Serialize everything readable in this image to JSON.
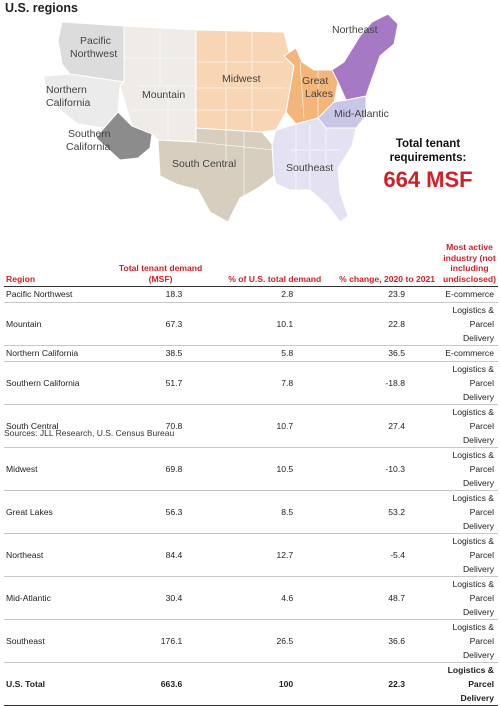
{
  "title": "U.S. regions",
  "colors": {
    "accent_red": "#d21f26",
    "pacific_northwest": "#dcdcdc",
    "mountain": "#efece8",
    "northern_california": "#ebebeb",
    "southern_california": "#8c8c8c",
    "south_central": "#d7cebf",
    "midwest": "#f7d5b5",
    "great_lakes": "#f4b57a",
    "northeast": "#a679c4",
    "mid_atlantic": "#c9c6e6",
    "southeast": "#e4e2f2"
  },
  "map_labels": {
    "pacific_northwest": "Pacific Northwest",
    "northern_california": "Northern California",
    "mountain": "Mountain",
    "southern_california": "Southern California",
    "south_central": "South Central",
    "midwest": "Midwest",
    "great_lakes": "Great Lakes",
    "northeast": "Northeast",
    "mid_atlantic": "Mid-Atlantic",
    "southeast": "Southeast"
  },
  "total": {
    "label": "Total tenant requirements:",
    "value": "664 MSF"
  },
  "table": {
    "headers": [
      "Region",
      "Total tenant demand (MSF)",
      "% of U.S. total demand",
      "% change, 2020 to 2021",
      "Most active industry (not including undisclosed)"
    ],
    "rows": [
      [
        "Pacific Northwest",
        "18.3",
        "2.8",
        "23.9",
        "E-commerce"
      ],
      [
        "Mountain",
        "67.3",
        "10.1",
        "22.8",
        "Logistics & Parcel Delivery"
      ],
      [
        "Northern California",
        "38.5",
        "5.8",
        "36.5",
        "E-commerce"
      ],
      [
        "Southern California",
        "51.7",
        "7.8",
        "-18.8",
        "Logistics & Parcel Delivery"
      ],
      [
        "South Central",
        "70.8",
        "10.7",
        "27.4",
        "Logistics & Parcel Delivery"
      ],
      [
        "Midwest",
        "69.8",
        "10.5",
        "-10.3",
        "Logistics & Parcel Delivery"
      ],
      [
        "Great Lakes",
        "56.3",
        "8.5",
        "53.2",
        "Logistics & Parcel Delivery"
      ],
      [
        "Northeast",
        "84.4",
        "12.7",
        "-5.4",
        "Logistics & Parcel Delivery"
      ],
      [
        "Mid-Atlantic",
        "30.4",
        "4.6",
        "48.7",
        "Logistics & Parcel Delivery"
      ],
      [
        "Southeast",
        "176.1",
        "26.5",
        "36.6",
        "Logistics & Parcel Delivery"
      ]
    ],
    "total_row": [
      "U.S. Total",
      "663.6",
      "100",
      "22.3",
      "Logistics & Parcel Delivery"
    ]
  },
  "source": "Sources: JLL Research, U.S. Census Bureau",
  "chart_data": {
    "type": "table",
    "title": "U.S. regions",
    "columns": [
      "Region",
      "Total tenant demand (MSF)",
      "% of U.S. total demand",
      "% change, 2020 to 2021",
      "Most active industry (not including undisclosed)"
    ],
    "rows": [
      {
        "region": "Pacific Northwest",
        "demand_msf": 18.3,
        "pct_of_total": 2.8,
        "pct_change": 23.9,
        "industry": "E-commerce"
      },
      {
        "region": "Mountain",
        "demand_msf": 67.3,
        "pct_of_total": 10.1,
        "pct_change": 22.8,
        "industry": "Logistics & Parcel Delivery"
      },
      {
        "region": "Northern California",
        "demand_msf": 38.5,
        "pct_of_total": 5.8,
        "pct_change": 36.5,
        "industry": "E-commerce"
      },
      {
        "region": "Southern California",
        "demand_msf": 51.7,
        "pct_of_total": 7.8,
        "pct_change": -18.8,
        "industry": "Logistics & Parcel Delivery"
      },
      {
        "region": "South Central",
        "demand_msf": 70.8,
        "pct_of_total": 10.7,
        "pct_change": 27.4,
        "industry": "Logistics & Parcel Delivery"
      },
      {
        "region": "Midwest",
        "demand_msf": 69.8,
        "pct_of_total": 10.5,
        "pct_change": -10.3,
        "industry": "Logistics & Parcel Delivery"
      },
      {
        "region": "Great Lakes",
        "demand_msf": 56.3,
        "pct_of_total": 8.5,
        "pct_change": 53.2,
        "industry": "Logistics & Parcel Delivery"
      },
      {
        "region": "Northeast",
        "demand_msf": 84.4,
        "pct_of_total": 12.7,
        "pct_change": -5.4,
        "industry": "Logistics & Parcel Delivery"
      },
      {
        "region": "Mid-Atlantic",
        "demand_msf": 30.4,
        "pct_of_total": 4.6,
        "pct_change": 48.7,
        "industry": "Logistics & Parcel Delivery"
      },
      {
        "region": "Southeast",
        "demand_msf": 176.1,
        "pct_of_total": 26.5,
        "pct_change": 36.6,
        "industry": "Logistics & Parcel Delivery"
      }
    ],
    "total": {
      "region": "U.S. Total",
      "demand_msf": 663.6,
      "pct_of_total": 100,
      "pct_change": 22.3,
      "industry": "Logistics & Parcel Delivery"
    }
  }
}
